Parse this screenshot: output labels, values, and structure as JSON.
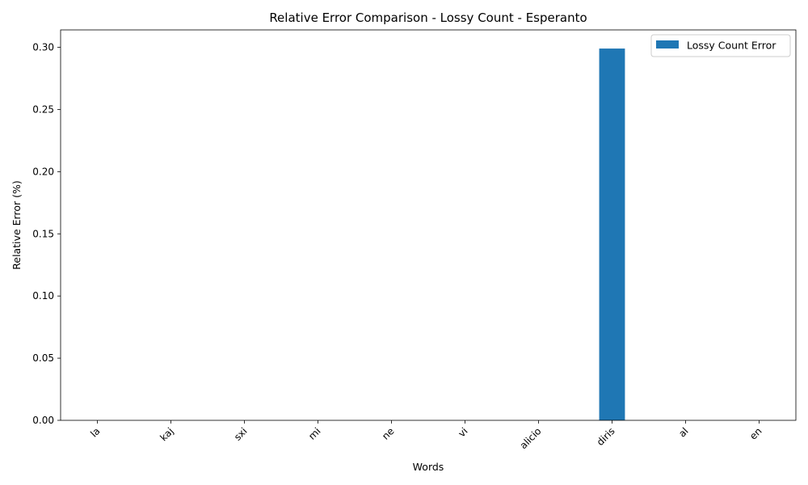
{
  "chart_data": {
    "type": "bar",
    "title": "Relative Error Comparison - Lossy Count - Esperanto",
    "xlabel": "Words",
    "ylabel": "Relative Error (%)",
    "categories": [
      "la",
      "kaj",
      "sxi",
      "mi",
      "ne",
      "vi",
      "alicio",
      "diris",
      "al",
      "en"
    ],
    "series": [
      {
        "name": "Lossy Count Error",
        "values": [
          0,
          0,
          0,
          0,
          0,
          0,
          0,
          0.299,
          0,
          0
        ],
        "color": "#1f77b4"
      }
    ],
    "ylim": [
      0,
      0.314
    ],
    "yticks": [
      0.0,
      0.05,
      0.1,
      0.15,
      0.2,
      0.25,
      0.3
    ],
    "ytick_labels": [
      "0.00",
      "0.05",
      "0.10",
      "0.15",
      "0.20",
      "0.25",
      "0.30"
    ],
    "grid": false,
    "legend_position": "top-right",
    "xtick_rotation": 45
  }
}
